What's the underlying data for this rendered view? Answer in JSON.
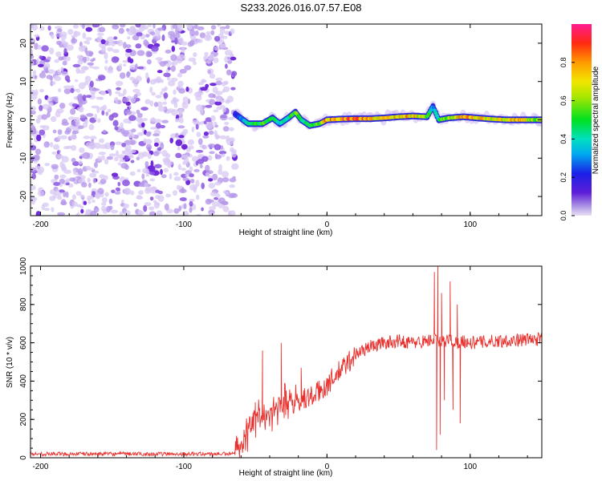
{
  "page": {
    "title": "S233.2026.016.07.57.E08"
  },
  "chart_data": [
    {
      "type": "heatmap",
      "name": "spectrogram",
      "xlabel": "Height of straight line (km)",
      "ylabel": "Frequency (Hz)",
      "xlim": [
        -207,
        150
      ],
      "ylim": [
        -25,
        25
      ],
      "xticks": [
        -200,
        -100,
        0,
        100
      ],
      "yticks": [
        -20,
        -10,
        0,
        10,
        20
      ],
      "noise_region": {
        "x_range": [
          -207,
          -64
        ],
        "y_range": [
          -25,
          25
        ],
        "description": "broadband low-amplitude noise"
      },
      "signal_track": {
        "x": [
          -64,
          -55,
          -45,
          -38,
          -33,
          -27,
          -22,
          -18,
          -12,
          -5,
          0,
          10,
          20,
          30,
          40,
          50,
          60,
          70,
          74,
          78,
          85,
          95,
          105,
          115,
          125,
          135,
          150
        ],
        "freq_hz": [
          1.5,
          -1.0,
          -1.0,
          0.5,
          -1.0,
          0.5,
          2.0,
          0.0,
          -1.5,
          -1.0,
          0.0,
          0.2,
          0.3,
          0.3,
          0.5,
          0.8,
          1.0,
          0.8,
          3.5,
          0.0,
          0.5,
          0.8,
          0.5,
          0.2,
          0.0,
          0.0,
          0.0
        ],
        "amplitude": [
          0.2,
          0.45,
          0.55,
          0.5,
          0.4,
          0.5,
          0.6,
          0.5,
          0.5,
          0.6,
          0.85,
          0.9,
          0.9,
          0.8,
          0.75,
          0.8,
          0.8,
          0.6,
          0.3,
          0.5,
          0.7,
          0.8,
          0.8,
          0.7,
          0.75,
          0.8,
          0.6
        ]
      }
    },
    {
      "type": "colorbar",
      "name": "colorbar",
      "label": "Normalized spectral amplitude",
      "range": [
        0,
        1
      ],
      "ticks": [
        "0.0",
        "0.2",
        "0.4",
        "0.6",
        "0.8"
      ],
      "tick_values": [
        0.0,
        0.2,
        0.4,
        0.6,
        0.8
      ]
    },
    {
      "type": "line",
      "name": "snr",
      "xlabel": "Height of straight line (km)",
      "ylabel": "SNR (10 * v/v)",
      "xlim": [
        -207,
        150
      ],
      "ylim": [
        0,
        1000
      ],
      "xticks": [
        -200,
        -100,
        0,
        100
      ],
      "yticks": [
        0,
        200,
        400,
        600,
        800,
        1000
      ],
      "color": "#e8312e",
      "envelope": {
        "x": [
          -207,
          -64,
          -60,
          -50,
          -40,
          -30,
          -20,
          -10,
          0,
          10,
          20,
          30,
          40,
          50,
          60,
          70,
          75,
          78,
          80,
          85,
          90,
          95,
          100,
          120,
          150
        ],
        "y": [
          20,
          20,
          80,
          200,
          240,
          300,
          300,
          320,
          380,
          460,
          540,
          580,
          600,
          610,
          600,
          610,
          620,
          600,
          600,
          620,
          600,
          610,
          600,
          610,
          620
        ]
      },
      "noise_amplitude": [
        {
          "x_range": [
            -207,
            -64
          ],
          "amp": 10
        },
        {
          "x_range": [
            -64,
            -20
          ],
          "amp": 130
        },
        {
          "x_range": [
            -20,
            20
          ],
          "amp": 60
        },
        {
          "x_range": [
            20,
            150
          ],
          "amp": 35
        }
      ],
      "spikes": [
        {
          "x": 75,
          "y": 970
        },
        {
          "x": 76.5,
          "y": 40
        },
        {
          "x": 77.5,
          "y": 1000
        },
        {
          "x": 79,
          "y": 120
        },
        {
          "x": 80,
          "y": 860
        },
        {
          "x": 82,
          "y": 300
        },
        {
          "x": 86,
          "y": 920
        },
        {
          "x": 88,
          "y": 250
        },
        {
          "x": 91,
          "y": 800
        },
        {
          "x": 93,
          "y": 180
        },
        {
          "x": -45,
          "y": 560
        },
        {
          "x": -32,
          "y": 600
        },
        {
          "x": -50,
          "y": 290
        },
        {
          "x": -18,
          "y": 470
        }
      ]
    }
  ]
}
